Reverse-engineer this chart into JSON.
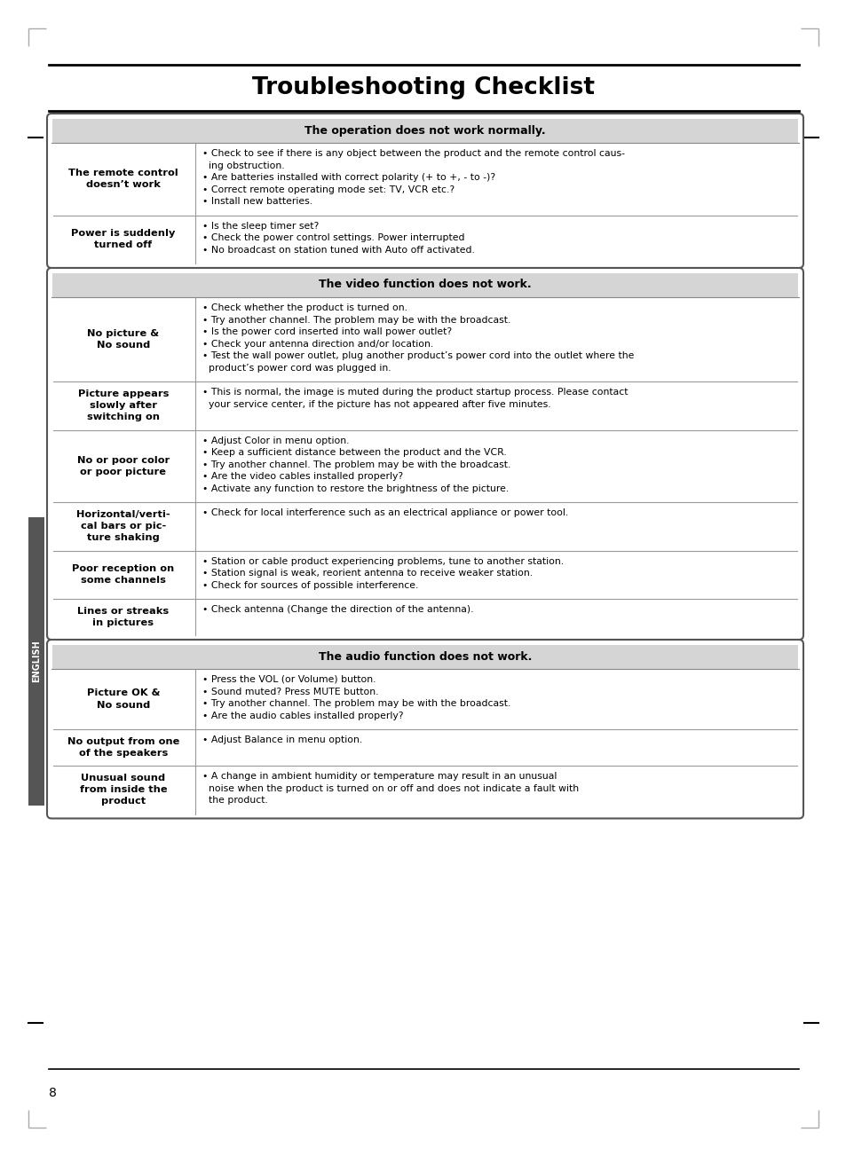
{
  "title": "Troubleshooting Checklist",
  "page_number": "8",
  "bg_color": "#ffffff",
  "sections": [
    {
      "header": "The operation does not work normally.",
      "rows": [
        {
          "label": "The remote control\ndoesn’t work",
          "content": "• Check to see if there is any object between the product and the remote control caus-\n  ing obstruction.\n• Are batteries installed with correct polarity (+ to +, - to -)?\n• Correct remote operating mode set: TV, VCR etc.?\n• Install new batteries."
        },
        {
          "label": "Power is suddenly\nturned off",
          "content": "• Is the sleep timer set?\n• Check the power control settings. Power interrupted\n• No broadcast on station tuned with Auto off activated."
        }
      ]
    },
    {
      "header": "The video function does not work.",
      "rows": [
        {
          "label": "No picture &\nNo sound",
          "content": "• Check whether the product is turned on.\n• Try another channel. The problem may be with the broadcast.\n• Is the power cord inserted into wall power outlet?\n• Check your antenna direction and/or location.\n• Test the wall power outlet, plug another product’s power cord into the outlet where the\n  product’s power cord was plugged in."
        },
        {
          "label": "Picture appears\nslowly after\nswitching on",
          "content": "• This is normal, the image is muted during the product startup process. Please contact\n  your service center, if the picture has not appeared after five minutes."
        },
        {
          "label": "No or poor color\nor poor picture",
          "content": "• Adjust Color in menu option.\n• Keep a sufficient distance between the product and the VCR.\n• Try another channel. The problem may be with the broadcast.\n• Are the video cables installed properly?\n• Activate any function to restore the brightness of the picture."
        },
        {
          "label": "Horizontal/verti-\ncal bars or pic-\nture shaking",
          "content": "• Check for local interference such as an electrical appliance or power tool."
        },
        {
          "label": "Poor reception on\nsome channels",
          "content": "• Station or cable product experiencing problems, tune to another station.\n• Station signal is weak, reorient antenna to receive weaker station.\n• Check for sources of possible interference."
        },
        {
          "label": "Lines or streaks\nin pictures",
          "content": "• Check antenna (Change the direction of the antenna)."
        }
      ]
    },
    {
      "header": "The audio function does not work.",
      "rows": [
        {
          "label": "Picture OK &\nNo sound",
          "content_parts": [
            {
              "text": "• Press the ",
              "bold": false
            },
            {
              "text": "VOL (or Volume)",
              "bold": true
            },
            {
              "text": " button.\n• Sound muted? Press ",
              "bold": false
            },
            {
              "text": "MUTE",
              "bold": true
            },
            {
              "text": " button.\n• Try another channel. The problem may be with the broadcast.\n• Are the audio cables installed properly?",
              "bold": false
            }
          ],
          "content": "• Press the VOL (or Volume) button.\n• Sound muted? Press MUTE button.\n• Try another channel. The problem may be with the broadcast.\n• Are the audio cables installed properly?"
        },
        {
          "label": "No output from one\nof the speakers",
          "content": "• Adjust Balance in menu option."
        },
        {
          "label": "Unusual sound\nfrom inside the\nproduct",
          "content": "• A change in ambient humidity or temperature may result in an unusual\n  noise when the product is turned on or off and does not indicate a fault with\n  the product."
        }
      ]
    }
  ]
}
